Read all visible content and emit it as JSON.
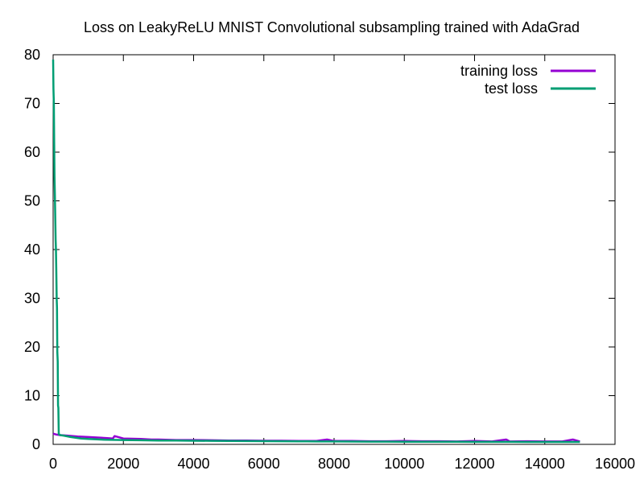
{
  "chart_data": {
    "type": "line",
    "title": "Loss on LeakyReLU MNIST Convolutional subsampling trained with AdaGrad",
    "xlabel": "",
    "ylabel": "",
    "xlim": [
      0,
      16000
    ],
    "ylim": [
      0,
      80
    ],
    "x_ticks": [
      "0",
      "2000",
      "4000",
      "6000",
      "8000",
      "10000",
      "12000",
      "14000",
      "16000"
    ],
    "y_ticks": [
      "0",
      "10",
      "20",
      "30",
      "40",
      "50",
      "60",
      "70",
      "80"
    ],
    "grid": false,
    "legend_position": "top-right",
    "series": [
      {
        "name": "training loss",
        "color": "#9400d3",
        "x": [
          0,
          100,
          200,
          400,
          700,
          1000,
          1500,
          1700,
          1750,
          2000,
          2500,
          2800,
          3000,
          3500,
          4000,
          4500,
          5000,
          5500,
          6000,
          6500,
          7000,
          7500,
          7800,
          8000,
          8500,
          9000,
          9500,
          10000,
          10500,
          11000,
          11500,
          12000,
          12500,
          12900,
          13000,
          13500,
          14000,
          14500,
          14800,
          15000
        ],
        "y": [
          2.2,
          2.0,
          1.9,
          1.8,
          1.6,
          1.5,
          1.3,
          1.2,
          1.7,
          1.2,
          1.1,
          1.0,
          1.0,
          0.9,
          0.9,
          0.85,
          0.8,
          0.8,
          0.75,
          0.75,
          0.7,
          0.7,
          1.0,
          0.7,
          0.7,
          0.65,
          0.65,
          0.7,
          0.65,
          0.65,
          0.6,
          0.7,
          0.6,
          1.0,
          0.6,
          0.65,
          0.6,
          0.6,
          1.0,
          0.6
        ]
      },
      {
        "name": "test loss",
        "color": "#009e73",
        "x": [
          0,
          10,
          20,
          30,
          40,
          50,
          60,
          70,
          80,
          90,
          100,
          110,
          120,
          130,
          140,
          150,
          160,
          180,
          200,
          300,
          500,
          800,
          1000,
          1500,
          2000,
          2500,
          3000,
          3500,
          4000,
          4500,
          5000,
          5500,
          6000,
          6500,
          7000,
          7500,
          8000,
          8500,
          9000,
          9500,
          10000,
          10500,
          11000,
          11500,
          12000,
          12500,
          13000,
          13500,
          14000,
          14500,
          15000
        ],
        "y": [
          79,
          73,
          70,
          62,
          55,
          51,
          47,
          42,
          40,
          36,
          30,
          28,
          19,
          17,
          8,
          7.5,
          2.1,
          2.0,
          1.9,
          1.8,
          1.5,
          1.2,
          1.1,
          0.95,
          0.9,
          0.85,
          0.8,
          0.78,
          0.75,
          0.72,
          0.7,
          0.68,
          0.66,
          0.64,
          0.62,
          0.6,
          0.6,
          0.58,
          0.57,
          0.56,
          0.55,
          0.55,
          0.54,
          0.53,
          0.52,
          0.52,
          0.51,
          0.5,
          0.5,
          0.5,
          0.5
        ]
      }
    ]
  }
}
